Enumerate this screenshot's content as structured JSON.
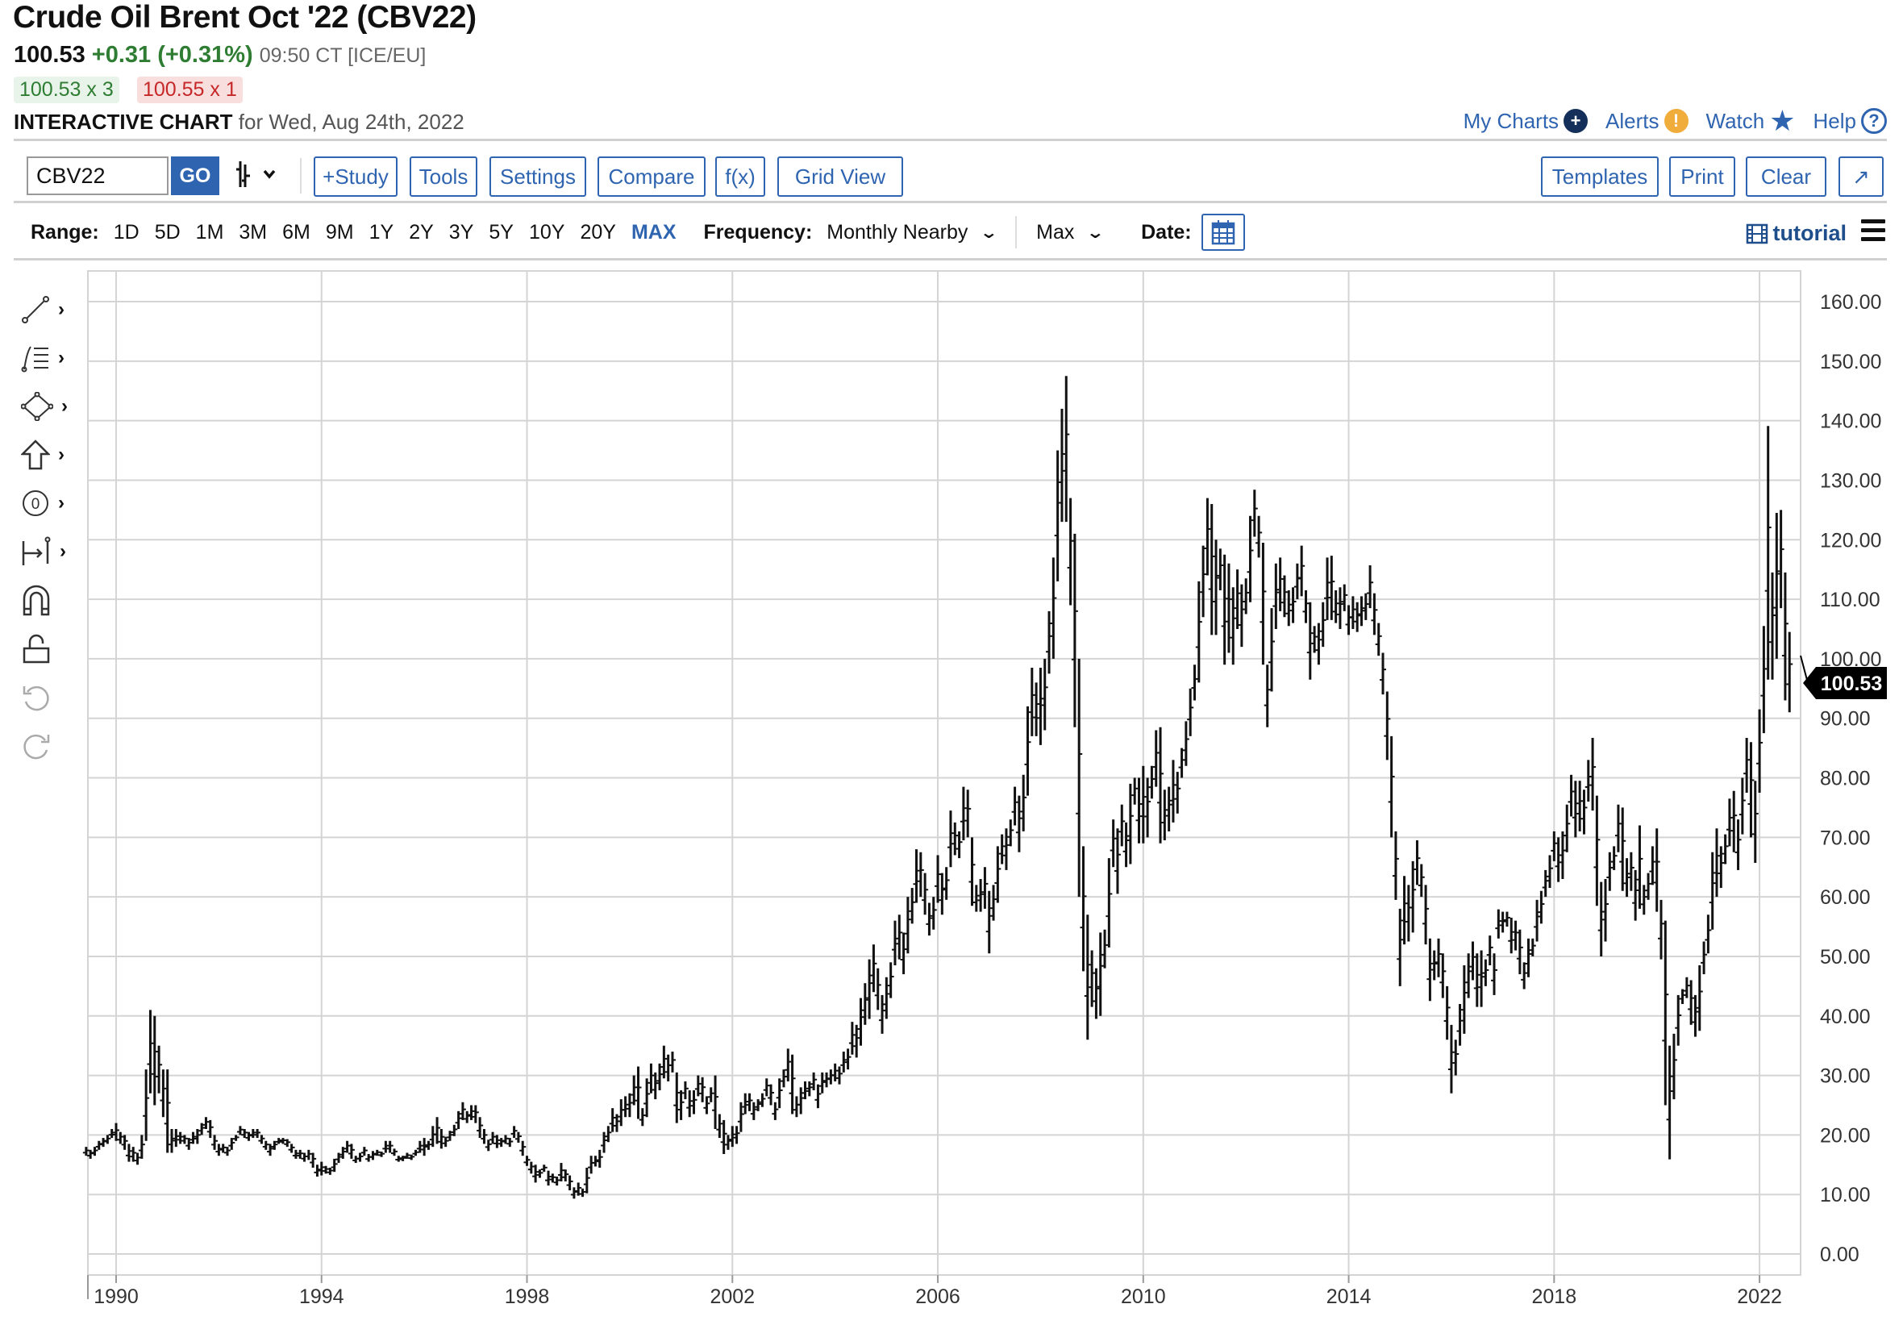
{
  "header": {
    "title": "Crude Oil Brent Oct '22 (CBV22)",
    "last": "100.53",
    "change": "+0.31 (+0.31%)",
    "time": "09:50 CT [ICE/EU]",
    "bid": "100.53 x 3",
    "ask": "100.55 x 1",
    "interactive_label": "INTERACTIVE CHART",
    "date_text": "for Wed, Aug 24th, 2022"
  },
  "toplinks": {
    "my_charts": "My Charts",
    "alerts": "Alerts",
    "watch": "Watch",
    "help": "Help"
  },
  "toolbar": {
    "symbol": "CBV22",
    "go": "GO",
    "study": "+Study",
    "tools": "Tools",
    "settings": "Settings",
    "compare": "Compare",
    "fx": "f(x)",
    "grid_view": "Grid View",
    "templates": "Templates",
    "print": "Print",
    "clear": "Clear",
    "expand": "↗"
  },
  "rangebar": {
    "range_label": "Range:",
    "ranges": [
      "1D",
      "5D",
      "1M",
      "3M",
      "6M",
      "9M",
      "1Y",
      "2Y",
      "3Y",
      "5Y",
      "10Y",
      "20Y",
      "MAX"
    ],
    "active_range": "MAX",
    "frequency_label": "Frequency:",
    "frequency": "Monthly Nearby",
    "period": "Max",
    "date_label": "Date:",
    "tutorial": "tutorial"
  },
  "colors": {
    "accent": "#2f64b0",
    "up": "#2e7d32",
    "down": "#c62828",
    "bars": "#111111",
    "grid": "#d4d4d4"
  },
  "chart_data": {
    "type": "ohlc-bar",
    "frequency": "monthly",
    "start": "1989-06",
    "last_price_label": "100.53",
    "last_price": 100.53,
    "ylim": [
      0,
      160
    ],
    "y_ticks": [
      "0.00",
      "10.00",
      "20.00",
      "30.00",
      "40.00",
      "50.00",
      "60.00",
      "70.00",
      "80.00",
      "90.00",
      "100.00",
      "110.00",
      "120.00",
      "130.00",
      "140.00",
      "150.00",
      "160.00"
    ],
    "x_ticks": [
      "1990",
      "1994",
      "1998",
      "2002",
      "2006",
      "2010",
      "2014",
      "2018",
      "2022"
    ],
    "grid": true,
    "high": [
      18,
      17.5,
      18,
      19,
      19.5,
      20,
      21,
      22,
      20.5,
      20,
      18.5,
      18,
      17,
      20,
      31,
      41,
      40,
      35,
      31,
      31,
      21,
      21,
      20.5,
      20,
      19.5,
      20.5,
      21,
      22,
      23,
      22.5,
      20,
      18.5,
      18.5,
      18,
      19.5,
      20,
      21.5,
      21,
      20.5,
      21,
      21,
      20,
      19,
      18.5,
      19,
      19.5,
      19.5,
      19.3,
      18.5,
      17.5,
      17.5,
      17,
      17.5,
      17,
      15,
      15.5,
      14.8,
      14.5,
      16,
      17,
      18,
      19,
      18.5,
      16.5,
      17,
      18,
      16.8,
      17.3,
      17.5,
      17.2,
      19,
      19,
      17.7,
      16.5,
      16.5,
      17,
      16.7,
      17.5,
      19,
      19.5,
      19,
      21.5,
      23,
      21,
      19.7,
      20.7,
      21.7,
      24,
      25.5,
      24,
      25,
      25,
      23,
      21,
      19.2,
      20.5,
      20,
      19.5,
      20,
      19.5,
      21.5,
      20.5,
      19,
      16.5,
      15.5,
      15,
      14.2,
      15,
      14,
      13.5,
      13,
      15.3,
      14.2,
      13.2,
      11.2,
      12,
      11,
      14.5,
      16.5,
      16.5,
      17.5,
      20.5,
      21.5,
      24.5,
      23.5,
      26,
      26.5,
      27,
      30,
      31.5,
      24.5,
      29.5,
      32,
      30.5,
      32,
      35,
      33.5,
      34,
      30.5,
      27.5,
      29,
      27.5,
      27.5,
      30,
      29.7,
      26.5,
      28,
      30,
      23.5,
      22.5,
      20,
      21.5,
      21.5,
      25.5,
      27,
      27,
      25.5,
      26,
      27,
      29.5,
      28.5,
      25.5,
      29.5,
      31,
      34.5,
      33.5,
      26.5,
      28,
      29,
      29,
      30.5,
      28.5,
      30.5,
      30.5,
      31,
      32,
      31.5,
      34,
      34.5,
      39,
      38.5,
      43,
      45.5,
      49.5,
      52,
      48,
      43.5,
      46.5,
      49,
      56,
      57,
      54,
      60,
      61.5,
      68,
      67.5,
      64,
      59,
      60,
      67,
      64,
      65,
      74.5,
      72.5,
      71,
      78.5,
      78,
      70,
      62,
      63,
      65,
      61,
      62,
      68.5,
      70.5,
      71.5,
      73,
      78.5,
      77,
      80.5,
      92,
      98.5,
      96,
      98.5,
      100,
      108,
      117,
      135,
      142,
      147.5,
      127,
      121,
      100,
      68.5,
      57,
      51,
      48,
      54,
      54.5,
      66.5,
      73,
      71.5,
      75.5,
      72.5,
      79,
      80,
      80,
      82,
      80,
      82,
      88,
      88.5,
      78,
      78.5,
      83,
      81,
      85,
      89.5,
      95,
      99,
      113,
      119,
      127,
      126,
      120,
      118.5,
      117.5,
      116,
      112,
      115,
      112.5,
      113.5,
      124,
      128.4,
      124,
      119.5,
      99,
      108.5,
      116,
      117,
      114,
      111.5,
      112,
      116,
      119,
      111.5,
      109.5,
      105.5,
      106,
      109.5,
      117,
      117.3,
      111.5,
      112,
      112.5,
      109,
      110.5,
      109.5,
      110.5,
      111,
      115.7,
      111,
      106,
      101,
      94.5,
      87,
      71,
      58,
      63.5,
      62,
      66,
      69.5,
      65.5,
      62,
      53,
      51,
      53,
      50.5,
      45,
      38.5,
      36,
      42,
      48.5,
      50.5,
      52.5,
      50.5,
      51,
      49.5,
      53.5,
      50.5,
      57.9,
      57.5,
      57.5,
      56.5,
      56,
      54.5,
      49,
      53,
      53,
      59.5,
      61,
      64.5,
      67,
      71,
      70,
      71,
      75.5,
      80.5,
      79.5,
      79.5,
      78,
      83,
      86.7,
      77,
      62.5,
      63,
      67.5,
      68.5,
      75.5,
      75,
      66.5,
      67.5,
      64.5,
      72,
      62,
      64,
      68.5,
      71.5,
      59.5,
      56,
      35,
      37,
      43.5,
      44.5,
      46.5,
      46,
      43.5,
      48.5,
      52.5,
      57,
      67.5,
      71.5,
      68.5,
      70.5,
      76.5,
      77.8,
      73,
      80,
      86.7,
      86,
      79.5,
      91.5,
      105.5,
      139.1,
      114.5,
      124.5,
      125,
      114.5,
      104.5
    ],
    "low": [
      16.5,
      16,
      16.5,
      17.5,
      18,
      18.5,
      19.5,
      19,
      18.5,
      17.5,
      15.5,
      15.5,
      15,
      16,
      19,
      27,
      25,
      27,
      23,
      17,
      17,
      18,
      18.5,
      18.5,
      17.5,
      18.5,
      18.5,
      20,
      21,
      19.5,
      17.5,
      16.5,
      17,
      16.5,
      17.5,
      19,
      20,
      19.5,
      19,
      19.5,
      19.5,
      18.5,
      17.5,
      16.5,
      17.5,
      18.5,
      18.5,
      18,
      17,
      16,
      16,
      15.5,
      15.8,
      14.5,
      13,
      13.2,
      13.5,
      13.3,
      13.8,
      15.3,
      16,
      17,
      16,
      15.3,
      15.5,
      16.5,
      15.5,
      15.8,
      16.5,
      16.3,
      17,
      17,
      16.5,
      15.5,
      15.6,
      16,
      15.8,
      16.5,
      17,
      16.5,
      17.5,
      18,
      18.5,
      17.7,
      18,
      19,
      19.8,
      21,
      22.5,
      22,
      22.5,
      22,
      19.5,
      18.5,
      17.3,
      18.5,
      17.8,
      18,
      18.5,
      18,
      19.5,
      18.7,
      16.5,
      14.8,
      13.5,
      12,
      12.8,
      13.8,
      11.5,
      12,
      11.5,
      12.2,
      12.2,
      10.7,
      9.3,
      9.8,
      9.6,
      10.2,
      13.5,
      14.7,
      14.5,
      17,
      18.8,
      20.5,
      20.5,
      21.5,
      23,
      23,
      25,
      22.7,
      21.5,
      23,
      27,
      26,
      27.5,
      29.5,
      29,
      30.5,
      22,
      22.5,
      26,
      23,
      23.5,
      26.5,
      25.5,
      23.5,
      25.5,
      21,
      19.5,
      16.8,
      17.5,
      18,
      18.5,
      20.5,
      23.5,
      24,
      22.5,
      24,
      24.7,
      26.5,
      25,
      22.5,
      24.5,
      28,
      29,
      23.5,
      23,
      23.5,
      26,
      26.5,
      27.5,
      24.5,
      27,
      28,
      28.5,
      29,
      28.5,
      30.5,
      31,
      33.5,
      33,
      35,
      38.5,
      39.5,
      44,
      41,
      37,
      39.5,
      43,
      48.5,
      49.5,
      47,
      50.5,
      55.5,
      59,
      60,
      57,
      53.5,
      54.5,
      59,
      57,
      59.5,
      65,
      67,
      66.5,
      69.5,
      70,
      58.5,
      57.5,
      57.5,
      58,
      50.5,
      56,
      59,
      65.5,
      64.5,
      68.5,
      72,
      67.5,
      71,
      77,
      87,
      87,
      85.5,
      88,
      97.5,
      100,
      113,
      123,
      123,
      109,
      88.5,
      60,
      47.5,
      36,
      41.5,
      39.5,
      40,
      48,
      51.5,
      65,
      60.5,
      68.5,
      65,
      65.5,
      75.5,
      69,
      69,
      70,
      76.5,
      78.5,
      69,
      69.5,
      71,
      72.5,
      74,
      80,
      82,
      87,
      93,
      96,
      107,
      114,
      104,
      104,
      111.5,
      99,
      101,
      99,
      105,
      102,
      107.5,
      109.5,
      120.5,
      117,
      99,
      88.5,
      94.5,
      105,
      108,
      107,
      105.5,
      106,
      110,
      110.5,
      106,
      96.5,
      101,
      99,
      102,
      106.5,
      106.5,
      106,
      105,
      108,
      104,
      105,
      104.5,
      105.5,
      106.5,
      108.5,
      104,
      100.5,
      94,
      83,
      70,
      59.5,
      45,
      52,
      52.5,
      54,
      62,
      60,
      52,
      42.5,
      46,
      46.5,
      43,
      36,
      27,
      30,
      35,
      37,
      43,
      46,
      41.5,
      41.5,
      45,
      48.5,
      43.5,
      53,
      54,
      55,
      50.5,
      51,
      47,
      44.5,
      46.5,
      50,
      52.5,
      55.5,
      60,
      61.5,
      66,
      62.5,
      63,
      67.5,
      73.5,
      70,
      71,
      70.5,
      76,
      74.5,
      58.5,
      50,
      52.5,
      61,
      64.5,
      67.5,
      61,
      60,
      61,
      56,
      58,
      57,
      59.5,
      62,
      57.5,
      49.5,
      25,
      15.9,
      26,
      35,
      42,
      43,
      38.5,
      36.5,
      37.5,
      47,
      50.5,
      54.5,
      60,
      61.5,
      65.5,
      68.5,
      67.5,
      64.5,
      70.5,
      77.5,
      70,
      65.7,
      77.5,
      87.5,
      96.5,
      96.5,
      100,
      108.5,
      93,
      91
    ]
  }
}
